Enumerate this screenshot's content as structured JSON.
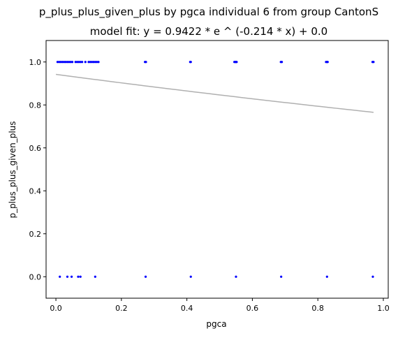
{
  "chart_data": {
    "type": "scatter",
    "title": "p_plus_plus_given_plus by pgca individual 6 from group CantonS",
    "subtitle": "model fit: y = 0.9422 * e ^ (-0.214 * x) + 0.0",
    "xlabel": "pgca",
    "ylabel": "p_plus_plus_given_plus",
    "xlim": [
      -0.03,
      1.015
    ],
    "ylim": [
      -0.1,
      1.1
    ],
    "xticks": [
      0.0,
      0.2,
      0.4,
      0.6,
      0.8,
      1.0
    ],
    "xtick_labels": [
      "0.0",
      "0.2",
      "0.4",
      "0.6",
      "0.8",
      "1.0"
    ],
    "yticks": [
      0.0,
      0.2,
      0.4,
      0.6,
      0.8,
      1.0
    ],
    "ytick_labels": [
      "0.0",
      "0.2",
      "0.4",
      "0.6",
      "0.8",
      "1.0"
    ],
    "grid": false,
    "point_color": "#0000ff",
    "fit_color": "#b0b0b0",
    "fit": {
      "a": 0.9422,
      "b": -0.214,
      "c": 0.0,
      "x_range": [
        0.0,
        0.97
      ]
    },
    "points": {
      "x": [
        0.005,
        0.01,
        0.015,
        0.02,
        0.025,
        0.03,
        0.035,
        0.04,
        0.045,
        0.05,
        0.06,
        0.065,
        0.07,
        0.075,
        0.08,
        0.09,
        0.1,
        0.105,
        0.11,
        0.115,
        0.12,
        0.125,
        0.13,
        0.272,
        0.275,
        0.41,
        0.412,
        0.545,
        0.548,
        0.55,
        0.552,
        0.687,
        0.69,
        0.825,
        0.828,
        0.83,
        0.967,
        0.97,
        0.012,
        0.035,
        0.048,
        0.068,
        0.075,
        0.12,
        0.274,
        0.412,
        0.55,
        0.688,
        0.828,
        0.968
      ],
      "y": [
        1,
        1,
        1,
        1,
        1,
        1,
        1,
        1,
        1,
        1,
        1,
        1,
        1,
        1,
        1,
        1,
        1,
        1,
        1,
        1,
        1,
        1,
        1,
        1,
        1,
        1,
        1,
        1,
        1,
        1,
        1,
        1,
        1,
        1,
        1,
        1,
        1,
        1,
        0,
        0,
        0,
        0,
        0,
        0,
        0,
        0,
        0,
        0,
        0,
        0
      ]
    }
  }
}
